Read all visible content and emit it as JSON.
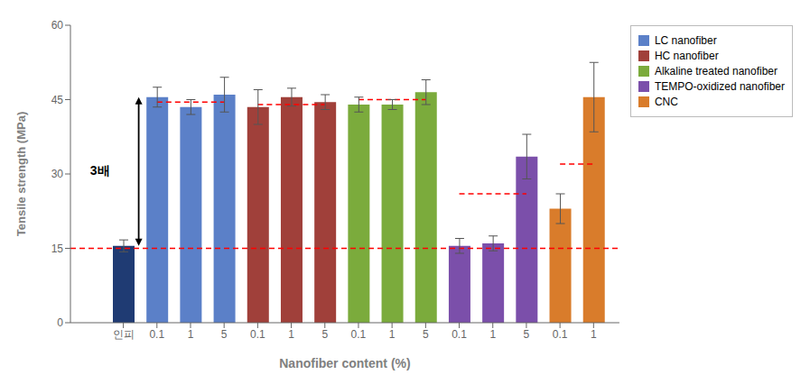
{
  "chart_data": {
    "type": "bar",
    "xlabel": "Nanofiber content (%)",
    "ylabel": "Tensile strength (MPa)",
    "categories": [
      "인피",
      "0.1",
      "1",
      "5",
      "0.1",
      "1",
      "5",
      "0.1",
      "1",
      "5",
      "0.1",
      "1",
      "5",
      "0.1",
      "1"
    ],
    "series": [
      {
        "color": "#1F3B73",
        "values": [
          15.5,
          null,
          null,
          null,
          null,
          null,
          null,
          null,
          null,
          null,
          null,
          null,
          null,
          null,
          null
        ],
        "errors": [
          1.2,
          null,
          null,
          null,
          null,
          null,
          null,
          null,
          null,
          null,
          null,
          null,
          null,
          null,
          null
        ]
      },
      {
        "name": "LC nanofiber",
        "color": "#5B80C8",
        "values": [
          null,
          45.5,
          43.5,
          46.0,
          null,
          null,
          null,
          null,
          null,
          null,
          null,
          null,
          null,
          null,
          null
        ],
        "errors": [
          null,
          2.0,
          1.5,
          3.5,
          null,
          null,
          null,
          null,
          null,
          null,
          null,
          null,
          null,
          null,
          null
        ]
      },
      {
        "name": "HC nanofiber",
        "color": "#A0403A",
        "values": [
          null,
          null,
          null,
          null,
          43.5,
          45.5,
          44.5,
          null,
          null,
          null,
          null,
          null,
          null,
          null,
          null
        ],
        "errors": [
          null,
          null,
          null,
          null,
          3.5,
          1.8,
          1.5,
          null,
          null,
          null,
          null,
          null,
          null,
          null,
          null
        ]
      },
      {
        "name": "Alkaline treated nanofiber",
        "color": "#7BAB3C",
        "values": [
          null,
          null,
          null,
          null,
          null,
          null,
          null,
          44.0,
          44.0,
          46.5,
          null,
          null,
          null,
          null,
          null
        ],
        "errors": [
          null,
          null,
          null,
          null,
          null,
          null,
          null,
          1.5,
          1.0,
          2.5,
          null,
          null,
          null,
          null,
          null
        ]
      },
      {
        "name": "TEMPO-oxidized nanofiber",
        "color": "#7B4FAA",
        "values": [
          null,
          null,
          null,
          null,
          null,
          null,
          null,
          null,
          null,
          null,
          15.5,
          16.0,
          33.5,
          null,
          null
        ],
        "errors": [
          null,
          null,
          null,
          null,
          null,
          null,
          null,
          null,
          null,
          null,
          1.5,
          1.5,
          4.5,
          null,
          null
        ]
      },
      {
        "name": "CNC",
        "color": "#D97C2B",
        "values": [
          null,
          null,
          null,
          null,
          null,
          null,
          null,
          null,
          null,
          null,
          null,
          null,
          null,
          23.0,
          45.5
        ],
        "errors": [
          null,
          null,
          null,
          null,
          null,
          null,
          null,
          null,
          null,
          null,
          null,
          null,
          null,
          3.0,
          7.0
        ]
      }
    ],
    "ylim": [
      0,
      60
    ],
    "yticks": [
      0,
      15,
      30,
      45,
      60
    ],
    "grid": false,
    "legend": "upper right",
    "reference_lines": [
      {
        "y": 15.0,
        "color": "red",
        "line_style": "dashed"
      },
      {
        "y": 44.5,
        "color": "red",
        "line_style": "dashed",
        "series": "LC nanofiber"
      },
      {
        "y": 44.0,
        "color": "red",
        "line_style": "dashed",
        "series": "HC nanofiber"
      },
      {
        "y": 45.0,
        "color": "red",
        "line_style": "dashed",
        "series": "Alkaline treated nanofiber"
      },
      {
        "y": 26.0,
        "color": "red",
        "line_style": "dashed",
        "series": "TEMPO-oxidized nanofiber"
      },
      {
        "y": 32.0,
        "color": "red",
        "line_style": "dashed",
        "series": "CNC"
      }
    ],
    "annotations": [
      {
        "text": "3배",
        "y_from": 15.5,
        "y_to": 45.5
      }
    ]
  }
}
